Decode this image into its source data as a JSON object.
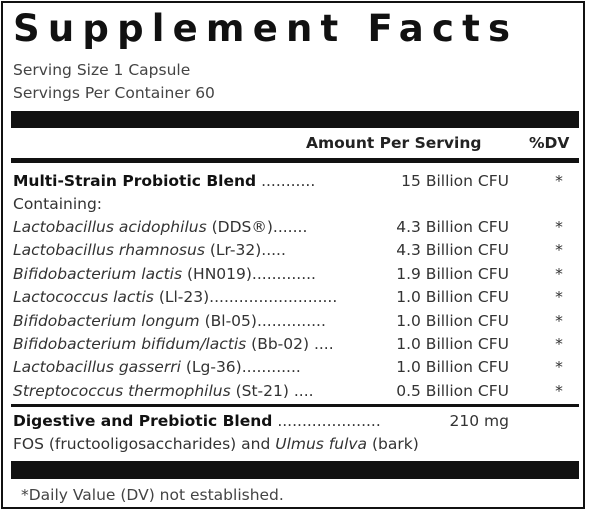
{
  "title": "Supplement Facts",
  "serving_size": "Serving Size 1 Capsule",
  "servings_per_container": "Servings Per Container 60",
  "header": {
    "amount": "Amount Per Serving",
    "dv": "%DV"
  },
  "blend1": {
    "name": "Multi-Strain Probiotic Blend",
    "dots": " ...........",
    "amount": "15 Billion CFU",
    "dv": "*",
    "containing": "Containing:"
  },
  "strains": [
    {
      "species": "Lactobacillus acidophilus",
      "strain": " (DDS®)",
      "dots": ".......",
      "amount": "4.3 Billion CFU",
      "dv": "*"
    },
    {
      "species": "Lactobacillus rhamnosus",
      "strain": " (Lr-32)",
      "dots": ".....",
      "amount": "4.3 Billion CFU",
      "dv": "*"
    },
    {
      "species": "Bifidobacterium lactis",
      "strain": " (HN019)",
      "dots": ".............",
      "amount": "1.9 Billion CFU",
      "dv": "*"
    },
    {
      "species": "Lactococcus lactis",
      "strain": " (Ll-23)",
      "dots": "..........................",
      "amount": "1.0 Billion CFU",
      "dv": "*"
    },
    {
      "species": "Bifidobacterium longum",
      "strain": " (Bl-05)",
      "dots": "..............",
      "amount": "1.0 Billion CFU",
      "dv": "*"
    },
    {
      "species": "Bifidobacterium bifidum/lactis",
      "strain": " (Bb-02)",
      "dots": " ....",
      "amount": "1.0 Billion CFU",
      "dv": "*"
    },
    {
      "species": "Lactobacillus gasserri",
      "strain": " (Lg-36)",
      "dots": "............",
      "amount": "1.0 Billion CFU",
      "dv": "*"
    },
    {
      "species": "Streptococcus thermophilus",
      "strain": " (St-21)",
      "dots": " ....",
      "amount": "0.5 Billion CFU",
      "dv": "*"
    }
  ],
  "blend2": {
    "name": "Digestive and Prebiotic Blend",
    "dots": " .....................",
    "amount": "210 mg",
    "desc_before": "FOS (fructooligosaccharides) and ",
    "desc_italic": "Ulmus fulva",
    "desc_after": " (bark)"
  },
  "footnote": "*Daily Value (DV) not established."
}
